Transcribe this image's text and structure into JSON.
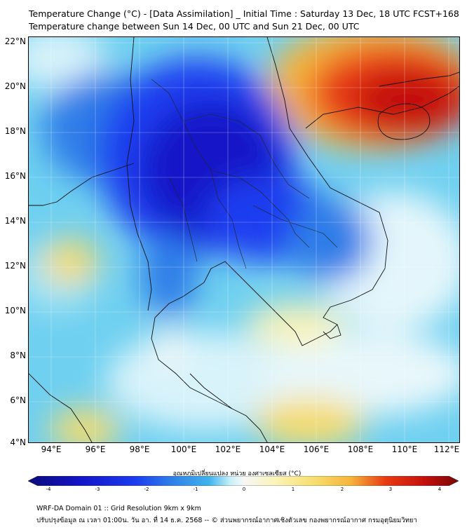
{
  "title_line1": "Temperature Change (°C) - [Data Assimilation] _ Initial Time : Saturday 13 Dec, 18 UTC FCST+168",
  "title_line2": "Temperature change between Sun 14 Dec, 00 UTC and Sun 21 Dec, 00 UTC",
  "lat_labels": [
    "22°N",
    "20°N",
    "18°N",
    "16°N",
    "14°N",
    "12°N",
    "10°N",
    "8°N",
    "6°N",
    "4°N"
  ],
  "lon_labels": [
    "94°E",
    "96°E",
    "98°E",
    "100°E",
    "102°E",
    "104°E",
    "106°E",
    "108°E",
    "110°E",
    "112°E"
  ],
  "colorbar": {
    "label": "อุณหภูมิเปลี่ยนแปลง หน่วย องศาเซลเซียส (°C)",
    "ticks": [
      "-4",
      "-3",
      "-2",
      "-1",
      "0",
      "1",
      "2",
      "3",
      "4"
    ],
    "colors": [
      "#0b0b7a",
      "#1414c8",
      "#1c3cf0",
      "#2f7de8",
      "#3fb3ee",
      "#7fd8f2",
      "#c7f0f8",
      "#f7f7f7",
      "#fbf3b5",
      "#f7dc6a",
      "#f6b43a",
      "#f27a1d",
      "#e83b12",
      "#c4100c",
      "#7a0606"
    ]
  },
  "footer_line1": "WRF-DA Domain 01 :: Grid Resolution 9km x 9km",
  "footer_line2": "ปรับปรุงข้อมูล ณ เวลา 01:00น. วัน อา. ที่ 14 ธ.ค. 2568 -- © ส่วนพยากรณ์อากาศเชิงตัวเลข กองพยากรณ์อากาศ กรมอุตุนิยมวิทยา"
}
